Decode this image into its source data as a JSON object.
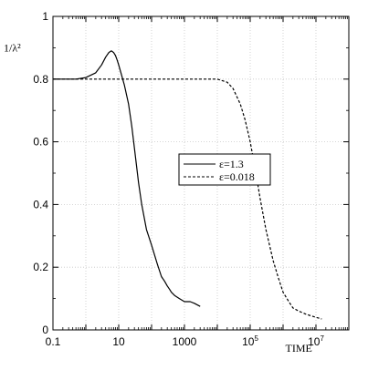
{
  "chart_data": {
    "type": "line",
    "xlabel": "TIME",
    "ylabel": "1/λ²",
    "xscale": "log",
    "xlim": [
      0.1,
      100000000
    ],
    "ylim": [
      0,
      1
    ],
    "grid": true,
    "legend_position": "center-right",
    "x_ticks": [
      {
        "value": 0.1,
        "label": "0.1",
        "sup": ""
      },
      {
        "value": 10,
        "label": "10",
        "sup": ""
      },
      {
        "value": 1000,
        "label": "1000",
        "sup": ""
      },
      {
        "value": 100000,
        "label": "10",
        "sup": "5"
      },
      {
        "value": 10000000,
        "label": "10",
        "sup": "7"
      }
    ],
    "y_ticks": [
      {
        "value": 0,
        "label": "0"
      },
      {
        "value": 0.2,
        "label": "0.2"
      },
      {
        "value": 0.4,
        "label": "0.4"
      },
      {
        "value": 0.6,
        "label": "0.6"
      },
      {
        "value": 0.8,
        "label": "0.8"
      },
      {
        "value": 1,
        "label": "1"
      }
    ],
    "series": [
      {
        "name": "ε=1.3",
        "style": "solid",
        "color": "#000000",
        "x": [
          0.1,
          0.5,
          1,
          2,
          3,
          4,
          5,
          6,
          7,
          8,
          9,
          10,
          12,
          15,
          20,
          25,
          30,
          40,
          50,
          70,
          100,
          150,
          200,
          250,
          300,
          350,
          400,
          500,
          700,
          1000,
          1500,
          2000,
          3000
        ],
        "y": [
          0.8,
          0.8,
          0.805,
          0.82,
          0.845,
          0.87,
          0.885,
          0.89,
          0.885,
          0.875,
          0.86,
          0.845,
          0.815,
          0.78,
          0.72,
          0.65,
          0.58,
          0.47,
          0.4,
          0.32,
          0.27,
          0.21,
          0.17,
          0.155,
          0.14,
          0.13,
          0.12,
          0.11,
          0.1,
          0.09,
          0.09,
          0.085,
          0.075
        ]
      },
      {
        "name": "ε=0.018",
        "style": "dashed",
        "color": "#000000",
        "x": [
          0.1,
          1,
          10,
          100,
          1000,
          10000,
          20000,
          30000,
          50000,
          70000,
          100000,
          150000,
          200000,
          300000,
          500000,
          700000,
          1000000,
          1500000,
          2000000,
          3000000,
          5000000,
          7000000,
          10000000,
          15000000
        ],
        "y": [
          0.8,
          0.8,
          0.8,
          0.8,
          0.8,
          0.8,
          0.79,
          0.77,
          0.72,
          0.67,
          0.6,
          0.5,
          0.42,
          0.32,
          0.22,
          0.17,
          0.12,
          0.09,
          0.07,
          0.06,
          0.05,
          0.045,
          0.04,
          0.035
        ]
      }
    ]
  }
}
